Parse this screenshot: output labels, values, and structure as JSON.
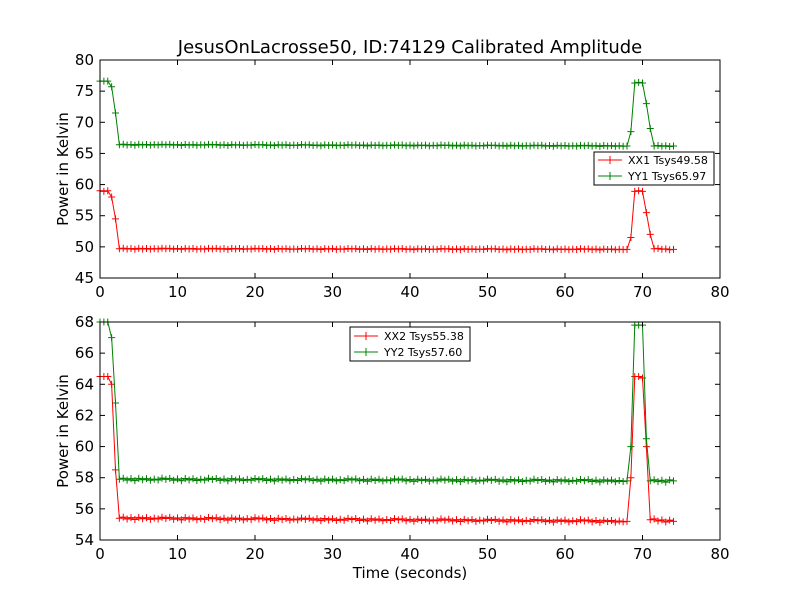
{
  "title": "JesusOnLacrosse50, ID:74129 Calibrated Amplitude",
  "chart_data": [
    {
      "type": "line",
      "xlabel": "",
      "ylabel": "Power in Kelvin",
      "xlim": [
        0,
        80
      ],
      "ylim": [
        45,
        80
      ],
      "xticks": [
        0,
        10,
        20,
        30,
        40,
        50,
        60,
        70,
        80
      ],
      "yticks": [
        45,
        50,
        55,
        60,
        65,
        70,
        75,
        80
      ],
      "grid": false,
      "legend": "right",
      "marker": "+",
      "series": [
        {
          "name": "XX1 Tsys49.58",
          "color": "#ff0000",
          "points": [
            [
              0,
              59.0
            ],
            [
              0.5,
              58.9
            ],
            [
              1.0,
              59.0
            ],
            [
              1.5,
              58.0
            ],
            [
              2.0,
              54.5
            ],
            [
              2.5,
              49.7
            ],
            [
              68.0,
              49.6
            ],
            [
              68.5,
              51.5
            ],
            [
              69.0,
              58.9
            ],
            [
              69.5,
              59.0
            ],
            [
              70.0,
              58.9
            ],
            [
              70.5,
              55.5
            ],
            [
              71.0,
              52.0
            ],
            [
              71.5,
              49.7
            ],
            [
              74.0,
              49.6
            ]
          ],
          "baseline": 49.6
        },
        {
          "name": "YY1 Tsys65.97",
          "color": "#008000",
          "points": [
            [
              0,
              76.6
            ],
            [
              0.5,
              76.6
            ],
            [
              1.0,
              76.6
            ],
            [
              1.5,
              75.7
            ],
            [
              2.0,
              71.5
            ],
            [
              2.5,
              66.4
            ],
            [
              68.0,
              66.2
            ],
            [
              68.5,
              68.5
            ],
            [
              69.0,
              76.3
            ],
            [
              69.5,
              76.4
            ],
            [
              70.0,
              76.3
            ],
            [
              70.5,
              73.0
            ],
            [
              71.0,
              69.0
            ],
            [
              71.5,
              66.2
            ],
            [
              74.0,
              66.2
            ]
          ],
          "baseline": 66.4
        }
      ]
    },
    {
      "type": "line",
      "xlabel": "Time (seconds)",
      "ylabel": "Power in Kelvin",
      "xlim": [
        0,
        80
      ],
      "ylim": [
        54,
        68
      ],
      "xticks": [
        0,
        10,
        20,
        30,
        40,
        50,
        60,
        70,
        80
      ],
      "yticks": [
        54,
        56,
        58,
        60,
        62,
        64,
        66,
        68
      ],
      "grid": false,
      "legend": "top-center",
      "marker": "+",
      "series": [
        {
          "name": "XX2 Tsys55.38",
          "color": "#ff0000",
          "points": [
            [
              0,
              64.5
            ],
            [
              0.5,
              64.5
            ],
            [
              1.0,
              64.5
            ],
            [
              1.5,
              64.0
            ],
            [
              2.0,
              58.5
            ],
            [
              2.5,
              55.4
            ],
            [
              68.0,
              55.2
            ],
            [
              68.5,
              58.0
            ],
            [
              69.0,
              64.5
            ],
            [
              69.5,
              64.5
            ],
            [
              70.0,
              64.4
            ],
            [
              70.5,
              60.0
            ],
            [
              71.0,
              55.3
            ],
            [
              74.0,
              55.2
            ]
          ],
          "baseline": 55.3
        },
        {
          "name": "YY2 Tsys57.60",
          "color": "#008000",
          "points": [
            [
              0,
              68.0
            ],
            [
              0.5,
              68.0
            ],
            [
              1.0,
              68.0
            ],
            [
              1.5,
              67.0
            ],
            [
              2.0,
              62.8
            ],
            [
              2.5,
              57.9
            ],
            [
              68.0,
              57.8
            ],
            [
              68.5,
              60.0
            ],
            [
              69.0,
              67.8
            ],
            [
              69.5,
              67.8
            ],
            [
              70.0,
              67.8
            ],
            [
              70.5,
              60.5
            ],
            [
              71.0,
              57.8
            ],
            [
              74.0,
              57.8
            ]
          ],
          "baseline": 58.0
        }
      ]
    }
  ]
}
